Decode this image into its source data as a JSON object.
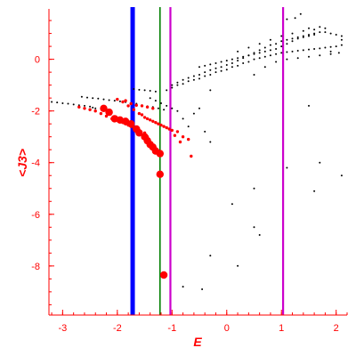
{
  "chart_data": {
    "type": "scatter",
    "title": "",
    "xlabel": "E",
    "ylabel": "<J3>",
    "xlim": [
      -3.25,
      2.2
    ],
    "ylim": [
      -9.9,
      1.95
    ],
    "xticks": [
      {
        "value": -3,
        "label": "-3"
      },
      {
        "value": -2,
        "label": "-2"
      },
      {
        "value": -1,
        "label": "-1"
      },
      {
        "value": 0,
        "label": "0"
      },
      {
        "value": 1,
        "label": "1"
      },
      {
        "value": 2,
        "label": "2"
      }
    ],
    "yticks": [
      {
        "value": 0,
        "label": "0"
      },
      {
        "value": -2,
        "label": "-2"
      },
      {
        "value": -4,
        "label": "-4"
      },
      {
        "value": -6,
        "label": "-6"
      },
      {
        "value": -8,
        "label": "-8"
      }
    ],
    "axis_color": "#ff0000",
    "vertical_lines": [
      {
        "x": -1.72,
        "color": "#0000ff",
        "style": "thick"
      },
      {
        "x": -1.22,
        "color": "#008000",
        "style": "thin"
      },
      {
        "x": -1.03,
        "color": "#cc00cc",
        "style": "medium"
      },
      {
        "x": 1.03,
        "color": "#cc00cc",
        "style": "medium"
      }
    ],
    "series": [
      {
        "color": "#000000",
        "marker": "small-dot",
        "points": [
          [
            -3.2,
            -1.65
          ],
          [
            -3.1,
            -1.67
          ],
          [
            -3.0,
            -1.7
          ],
          [
            -2.9,
            -1.72
          ],
          [
            -2.8,
            -1.75
          ],
          [
            -2.7,
            -1.78
          ],
          [
            -2.6,
            -1.8
          ],
          [
            -2.5,
            -1.83
          ],
          [
            -2.45,
            -1.87
          ],
          [
            -2.4,
            -1.9
          ],
          [
            -2.65,
            -1.45
          ],
          [
            -2.55,
            -1.48
          ],
          [
            -2.45,
            -1.5
          ],
          [
            -2.35,
            -1.52
          ],
          [
            -2.25,
            -1.55
          ],
          [
            -2.15,
            -1.58
          ],
          [
            -2.05,
            -1.6
          ],
          [
            -1.95,
            -1.63
          ],
          [
            -1.85,
            -1.66
          ],
          [
            -1.75,
            -1.7
          ],
          [
            -1.65,
            -1.72
          ],
          [
            -1.55,
            -1.78
          ],
          [
            -1.45,
            -1.82
          ],
          [
            -1.35,
            -1.85
          ],
          [
            -1.25,
            -1.9
          ],
          [
            -1.15,
            -1.95
          ],
          [
            -1.7,
            -1.15
          ],
          [
            -1.6,
            -1.18
          ],
          [
            -1.5,
            -1.2
          ],
          [
            -1.4,
            -1.22
          ],
          [
            -1.3,
            -1.25
          ],
          [
            -1.0,
            -1.0
          ],
          [
            -0.9,
            -0.9
          ],
          [
            -0.8,
            -0.8
          ],
          [
            -0.7,
            -0.72
          ],
          [
            -0.6,
            -0.65
          ],
          [
            -0.5,
            -0.6
          ],
          [
            -0.4,
            -0.5
          ],
          [
            -0.3,
            -0.42
          ],
          [
            -0.2,
            -0.35
          ],
          [
            -0.1,
            -0.3
          ],
          [
            0.0,
            -0.22
          ],
          [
            0.1,
            -0.15
          ],
          [
            0.2,
            -0.05
          ],
          [
            0.3,
            0.05
          ],
          [
            0.4,
            0.15
          ],
          [
            0.5,
            0.25
          ],
          [
            0.6,
            0.35
          ],
          [
            0.7,
            0.45
          ],
          [
            0.8,
            0.55
          ],
          [
            0.9,
            0.6
          ],
          [
            1.0,
            0.7
          ],
          [
            1.1,
            0.75
          ],
          [
            1.2,
            0.8
          ],
          [
            1.3,
            0.85
          ],
          [
            1.4,
            0.9
          ],
          [
            1.5,
            0.95
          ],
          [
            1.6,
            1.0
          ],
          [
            1.7,
            1.05
          ],
          [
            1.8,
            1.05
          ],
          [
            1.9,
            1.0
          ],
          [
            2.0,
            0.95
          ],
          [
            2.1,
            0.9
          ],
          [
            -1.1,
            -1.2
          ],
          [
            -1.0,
            -1.1
          ],
          [
            -0.9,
            -1.0
          ],
          [
            -0.8,
            -0.95
          ],
          [
            -0.7,
            -0.85
          ],
          [
            -0.6,
            -0.8
          ],
          [
            -0.5,
            -0.75
          ],
          [
            -0.4,
            -0.65
          ],
          [
            -0.3,
            -0.6
          ],
          [
            -0.2,
            -0.5
          ],
          [
            -0.1,
            -0.45
          ],
          [
            0.0,
            -0.4
          ],
          [
            0.1,
            -0.3
          ],
          [
            0.2,
            -0.25
          ],
          [
            0.3,
            -0.15
          ],
          [
            0.4,
            -0.1
          ],
          [
            0.5,
            0.0
          ],
          [
            0.6,
            0.05
          ],
          [
            0.7,
            0.1
          ],
          [
            0.8,
            0.15
          ],
          [
            0.9,
            0.2
          ],
          [
            1.0,
            0.25
          ],
          [
            1.1,
            0.28
          ],
          [
            1.2,
            0.3
          ],
          [
            1.3,
            0.33
          ],
          [
            1.4,
            0.35
          ],
          [
            1.5,
            0.38
          ],
          [
            1.6,
            0.4
          ],
          [
            1.7,
            0.42
          ],
          [
            1.8,
            0.45
          ],
          [
            1.9,
            0.48
          ],
          [
            2.0,
            0.5
          ],
          [
            2.1,
            0.55
          ],
          [
            -0.5,
            -0.3
          ],
          [
            -0.4,
            -0.25
          ],
          [
            -0.3,
            -0.2
          ],
          [
            -0.2,
            -0.15
          ],
          [
            -0.1,
            -0.1
          ],
          [
            0.0,
            -0.05
          ],
          [
            0.1,
            0.0
          ],
          [
            0.2,
            0.05
          ],
          [
            0.3,
            0.1
          ],
          [
            0.4,
            0.15
          ],
          [
            0.5,
            0.2
          ],
          [
            0.6,
            0.25
          ],
          [
            0.7,
            0.3
          ],
          [
            0.8,
            0.35
          ],
          [
            0.9,
            0.4
          ],
          [
            1.0,
            0.5
          ],
          [
            1.1,
            0.6
          ],
          [
            1.2,
            0.7
          ],
          [
            1.3,
            0.8
          ],
          [
            1.4,
            0.85
          ],
          [
            1.5,
            0.9
          ],
          [
            1.6,
            0.95
          ],
          [
            0.2,
            0.3
          ],
          [
            0.4,
            0.45
          ],
          [
            0.6,
            0.6
          ],
          [
            0.8,
            0.75
          ],
          [
            1.0,
            0.9
          ],
          [
            1.2,
            1.0
          ],
          [
            1.4,
            1.1
          ],
          [
            1.6,
            1.15
          ],
          [
            1.8,
            1.2
          ],
          [
            0.5,
            -0.6
          ],
          [
            0.7,
            -0.3
          ],
          [
            0.9,
            -0.1
          ],
          [
            1.1,
            0.0
          ],
          [
            1.3,
            0.05
          ],
          [
            1.5,
            0.1
          ],
          [
            1.7,
            0.15
          ],
          [
            1.9,
            0.2
          ],
          [
            2.05,
            0.25
          ],
          [
            1.1,
            1.55
          ],
          [
            1.25,
            1.6
          ],
          [
            1.35,
            1.75
          ],
          [
            1.5,
            1.2
          ],
          [
            1.7,
            1.25
          ],
          [
            1.9,
            0.3
          ],
          [
            2.1,
            0.75
          ],
          [
            -1.4,
            -1.5
          ],
          [
            -1.3,
            -1.6
          ],
          [
            -1.2,
            -1.7
          ],
          [
            -1.1,
            -1.8
          ],
          [
            -1.0,
            -1.9
          ],
          [
            -0.9,
            -2.0
          ],
          [
            -0.8,
            -2.3
          ],
          [
            -0.7,
            -2.6
          ],
          [
            -0.6,
            -2.1
          ],
          [
            -0.4,
            -2.8
          ],
          [
            -0.5,
            -1.9
          ],
          [
            -0.3,
            -1.2
          ],
          [
            1.5,
            -1.8
          ],
          [
            -0.3,
            -3.2
          ],
          [
            1.1,
            -4.2
          ],
          [
            1.7,
            -4.0
          ],
          [
            2.1,
            -4.5
          ],
          [
            0.5,
            -5.0
          ],
          [
            1.6,
            -5.1
          ],
          [
            0.5,
            -6.5
          ],
          [
            0.2,
            -8.0
          ],
          [
            -0.3,
            -7.6
          ],
          [
            0.6,
            -6.8
          ],
          [
            -0.8,
            -8.8
          ],
          [
            -0.45,
            -8.9
          ],
          [
            0.1,
            -5.6
          ]
        ]
      },
      {
        "color": "#ff0000",
        "marker": "dot",
        "points": [
          [
            -2.7,
            -1.85
          ],
          [
            -2.6,
            -1.9
          ],
          [
            -2.5,
            -1.95
          ],
          [
            -2.4,
            -2.0
          ],
          [
            -2.3,
            -2.1
          ],
          [
            -2.2,
            -2.2
          ],
          [
            -2.1,
            -2.3
          ],
          [
            -2.0,
            -2.35
          ],
          [
            -1.95,
            -2.4
          ],
          [
            -1.9,
            -2.45
          ],
          [
            -1.85,
            -2.5
          ],
          [
            -1.8,
            -2.55
          ],
          [
            -1.75,
            -2.6
          ],
          [
            -1.7,
            -2.65
          ],
          [
            -1.6,
            -2.75
          ],
          [
            -1.5,
            -2.85
          ],
          [
            -1.45,
            -3.0
          ],
          [
            -1.4,
            -3.2
          ],
          [
            -1.35,
            -3.35
          ],
          [
            -1.3,
            -3.45
          ],
          [
            -1.25,
            -3.55
          ],
          [
            -1.2,
            -3.65
          ],
          [
            -2.0,
            -1.55
          ],
          [
            -1.9,
            -1.65
          ],
          [
            -1.8,
            -1.8
          ],
          [
            -1.7,
            -1.95
          ],
          [
            -1.6,
            -2.1
          ],
          [
            -1.5,
            -2.25
          ],
          [
            -1.4,
            -2.35
          ],
          [
            -1.3,
            -2.45
          ],
          [
            -1.2,
            -2.55
          ],
          [
            -1.1,
            -2.65
          ],
          [
            -1.0,
            -2.75
          ],
          [
            -0.9,
            -2.8
          ],
          [
            -0.8,
            -3.0
          ],
          [
            -0.7,
            -3.1
          ],
          [
            -0.65,
            -3.75
          ],
          [
            -1.85,
            -1.6
          ],
          [
            -1.75,
            -1.72
          ],
          [
            -1.65,
            -1.78
          ],
          [
            -1.55,
            -1.8
          ],
          [
            -1.45,
            -1.85
          ],
          [
            -1.35,
            -1.9
          ],
          [
            -1.55,
            -2.15
          ],
          [
            -1.45,
            -2.3
          ],
          [
            -1.35,
            -2.4
          ],
          [
            -1.25,
            -2.5
          ],
          [
            -1.15,
            -2.6
          ],
          [
            -1.05,
            -2.7
          ],
          [
            -0.95,
            -2.95
          ],
          [
            -0.85,
            -3.2
          ]
        ]
      },
      {
        "color": "#ff0000",
        "marker": "large-dot",
        "points": [
          [
            -2.25,
            -1.9
          ],
          [
            -2.15,
            -2.05
          ],
          [
            -2.05,
            -2.3
          ],
          [
            -1.95,
            -2.35
          ],
          [
            -1.85,
            -2.4
          ],
          [
            -1.75,
            -2.5
          ],
          [
            -1.65,
            -2.7
          ],
          [
            -1.6,
            -2.85
          ],
          [
            -1.5,
            -3.0
          ],
          [
            -1.45,
            -3.15
          ],
          [
            -1.4,
            -3.3
          ],
          [
            -1.35,
            -3.4
          ],
          [
            -1.3,
            -3.55
          ],
          [
            -1.22,
            -3.65
          ],
          [
            -1.22,
            -4.45
          ],
          [
            -1.15,
            -8.35
          ]
        ]
      }
    ]
  }
}
